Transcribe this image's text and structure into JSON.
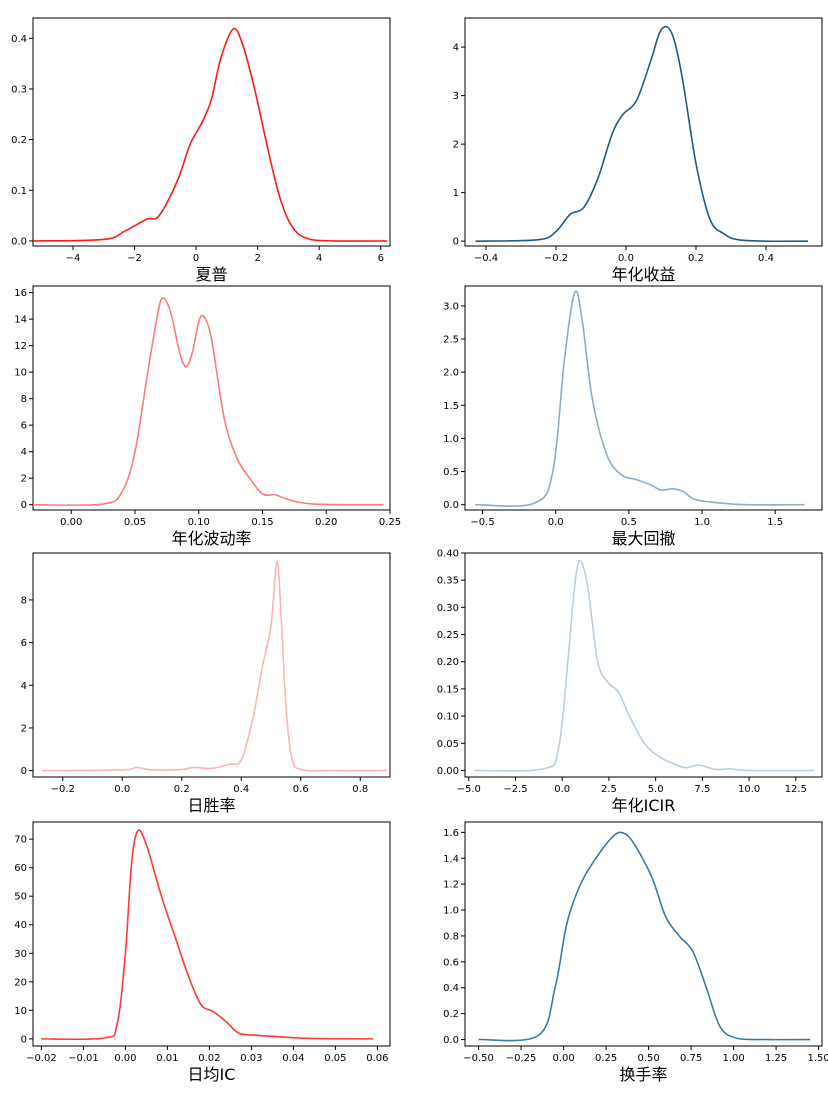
{
  "chart_data": [
    {
      "type": "line",
      "xlabel": "夏普",
      "color": "#ff1a1a",
      "xlim": [
        -5.3,
        6.3
      ],
      "ylim": [
        -0.01,
        0.44
      ],
      "xticks": [
        -4,
        -2,
        0,
        2,
        4,
        6
      ],
      "yticks": [
        0.0,
        0.1,
        0.2,
        0.3,
        0.4
      ],
      "points": [
        [
          -5.3,
          0.0
        ],
        [
          -3.0,
          0.003
        ],
        [
          -2.3,
          0.02
        ],
        [
          -1.6,
          0.043
        ],
        [
          -1.2,
          0.05
        ],
        [
          -0.6,
          0.12
        ],
        [
          -0.2,
          0.19
        ],
        [
          0.2,
          0.235
        ],
        [
          0.5,
          0.28
        ],
        [
          0.8,
          0.36
        ],
        [
          1.2,
          0.418
        ],
        [
          1.5,
          0.39
        ],
        [
          1.9,
          0.3
        ],
        [
          2.3,
          0.19
        ],
        [
          2.7,
          0.09
        ],
        [
          3.1,
          0.03
        ],
        [
          3.6,
          0.005
        ],
        [
          4.5,
          0.0
        ],
        [
          6.2,
          0.0
        ]
      ]
    },
    {
      "type": "line",
      "xlabel": "年化收益",
      "color": "#1f5b87",
      "xlim": [
        -0.46,
        0.56
      ],
      "ylim": [
        -0.1,
        4.6
      ],
      "xticks": [
        -0.4,
        -0.2,
        0.0,
        0.2,
        0.4
      ],
      "yticks": [
        0,
        1,
        2,
        3,
        4
      ],
      "points": [
        [
          -0.43,
          0.0
        ],
        [
          -0.25,
          0.03
        ],
        [
          -0.2,
          0.2
        ],
        [
          -0.16,
          0.55
        ],
        [
          -0.12,
          0.7
        ],
        [
          -0.08,
          1.3
        ],
        [
          -0.04,
          2.2
        ],
        [
          -0.01,
          2.6
        ],
        [
          0.03,
          2.9
        ],
        [
          0.07,
          3.7
        ],
        [
          0.1,
          4.35
        ],
        [
          0.13,
          4.3
        ],
        [
          0.16,
          3.4
        ],
        [
          0.2,
          1.6
        ],
        [
          0.24,
          0.45
        ],
        [
          0.28,
          0.15
        ],
        [
          0.32,
          0.03
        ],
        [
          0.4,
          0.0
        ],
        [
          0.52,
          0.0
        ]
      ]
    },
    {
      "type": "line",
      "xlabel": "年化波动率",
      "color": "#ff7b7b",
      "xlim": [
        -0.03,
        0.25
      ],
      "ylim": [
        -0.4,
        16.5
      ],
      "xticks": [
        0.0,
        0.05,
        0.1,
        0.15,
        0.2,
        0.25
      ],
      "yticks": [
        0,
        2,
        4,
        6,
        8,
        10,
        12,
        14,
        16
      ],
      "points": [
        [
          -0.03,
          0.0
        ],
        [
          0.025,
          0.05
        ],
        [
          0.04,
          1.0
        ],
        [
          0.05,
          4.0
        ],
        [
          0.06,
          10.0
        ],
        [
          0.068,
          14.5
        ],
        [
          0.072,
          15.6
        ],
        [
          0.078,
          14.5
        ],
        [
          0.085,
          11.5
        ],
        [
          0.09,
          10.4
        ],
        [
          0.095,
          11.5
        ],
        [
          0.1,
          13.8
        ],
        [
          0.104,
          14.2
        ],
        [
          0.11,
          12.5
        ],
        [
          0.12,
          6.5
        ],
        [
          0.13,
          3.5
        ],
        [
          0.14,
          2.0
        ],
        [
          0.15,
          0.8
        ],
        [
          0.16,
          0.75
        ],
        [
          0.17,
          0.4
        ],
        [
          0.19,
          0.05
        ],
        [
          0.245,
          0.0
        ]
      ]
    },
    {
      "type": "line",
      "xlabel": "最大回撤",
      "color": "#8aaec8",
      "xlim": [
        -0.62,
        1.82
      ],
      "ylim": [
        -0.08,
        3.3
      ],
      "xticks": [
        -0.5,
        0.0,
        0.5,
        1.0,
        1.5
      ],
      "yticks": [
        0.0,
        0.5,
        1.0,
        1.5,
        2.0,
        2.5,
        3.0
      ],
      "points": [
        [
          -0.55,
          0.0
        ],
        [
          -0.15,
          0.02
        ],
        [
          -0.02,
          0.5
        ],
        [
          0.06,
          2.2
        ],
        [
          0.13,
          3.2
        ],
        [
          0.18,
          2.8
        ],
        [
          0.25,
          1.6
        ],
        [
          0.35,
          0.75
        ],
        [
          0.45,
          0.45
        ],
        [
          0.55,
          0.38
        ],
        [
          0.65,
          0.3
        ],
        [
          0.72,
          0.22
        ],
        [
          0.8,
          0.24
        ],
        [
          0.87,
          0.2
        ],
        [
          0.95,
          0.08
        ],
        [
          1.1,
          0.03
        ],
        [
          1.3,
          0.0
        ],
        [
          1.7,
          0.0
        ]
      ]
    },
    {
      "type": "line",
      "xlabel": "日胜率",
      "color": "#ffb3b3",
      "xlim": [
        -0.3,
        0.9
      ],
      "ylim": [
        -0.3,
        10.2
      ],
      "xticks": [
        -0.2,
        0.0,
        0.2,
        0.4,
        0.6,
        0.8
      ],
      "yticks": [
        0,
        2,
        4,
        6,
        8
      ],
      "points": [
        [
          -0.27,
          0.0
        ],
        [
          0.0,
          0.03
        ],
        [
          0.05,
          0.15
        ],
        [
          0.1,
          0.03
        ],
        [
          0.2,
          0.05
        ],
        [
          0.24,
          0.15
        ],
        [
          0.3,
          0.1
        ],
        [
          0.36,
          0.3
        ],
        [
          0.4,
          0.5
        ],
        [
          0.44,
          2.5
        ],
        [
          0.47,
          4.8
        ],
        [
          0.5,
          6.8
        ],
        [
          0.52,
          9.8
        ],
        [
          0.535,
          7.0
        ],
        [
          0.55,
          3.0
        ],
        [
          0.57,
          0.6
        ],
        [
          0.6,
          0.05
        ],
        [
          0.7,
          0.0
        ],
        [
          0.89,
          0.0
        ]
      ]
    },
    {
      "type": "line",
      "xlabel": "年化ICIR",
      "color": "#b8cfe0",
      "xlim": [
        -5.2,
        13.9
      ],
      "ylim": [
        -0.012,
        0.4
      ],
      "xticks": [
        -5.0,
        -2.5,
        0.0,
        2.5,
        5.0,
        7.5,
        10.0,
        12.5
      ],
      "yticks": [
        0.0,
        0.05,
        0.1,
        0.15,
        0.2,
        0.25,
        0.3,
        0.35,
        0.4
      ],
      "points": [
        [
          -4.7,
          0.0
        ],
        [
          -1.0,
          0.003
        ],
        [
          -0.2,
          0.04
        ],
        [
          0.3,
          0.2
        ],
        [
          0.7,
          0.35
        ],
        [
          1.0,
          0.385
        ],
        [
          1.4,
          0.33
        ],
        [
          1.9,
          0.2
        ],
        [
          2.5,
          0.16
        ],
        [
          3.0,
          0.145
        ],
        [
          3.6,
          0.1
        ],
        [
          4.4,
          0.05
        ],
        [
          5.2,
          0.025
        ],
        [
          6.0,
          0.012
        ],
        [
          6.6,
          0.005
        ],
        [
          7.3,
          0.01
        ],
        [
          8.2,
          0.002
        ],
        [
          9.0,
          0.003
        ],
        [
          10.0,
          0.0
        ],
        [
          13.5,
          0.0
        ]
      ]
    },
    {
      "type": "line",
      "xlabel": "日均IC",
      "color": "#ff3a3a",
      "xlim": [
        -0.022,
        0.063
      ],
      "ylim": [
        -2.5,
        76
      ],
      "xticks": [
        -0.02,
        -0.01,
        0.0,
        0.01,
        0.02,
        0.03,
        0.04,
        0.05,
        0.06
      ],
      "yticks": [
        0,
        10,
        20,
        30,
        40,
        50,
        60,
        70
      ],
      "points": [
        [
          -0.02,
          0.0
        ],
        [
          -0.005,
          0.3
        ],
        [
          -0.002,
          5.0
        ],
        [
          0.0,
          30.0
        ],
        [
          0.0015,
          62.0
        ],
        [
          0.003,
          73.0
        ],
        [
          0.005,
          68.0
        ],
        [
          0.007,
          58.0
        ],
        [
          0.009,
          48.0
        ],
        [
          0.012,
          35.0
        ],
        [
          0.015,
          22.0
        ],
        [
          0.018,
          12.0
        ],
        [
          0.021,
          9.5
        ],
        [
          0.024,
          6.0
        ],
        [
          0.027,
          2.0
        ],
        [
          0.031,
          1.3
        ],
        [
          0.036,
          0.8
        ],
        [
          0.043,
          0.2
        ],
        [
          0.059,
          0.0
        ]
      ]
    },
    {
      "type": "line",
      "xlabel": "换手率",
      "color": "#3a7aa8",
      "xlim": [
        -0.58,
        1.52
      ],
      "ylim": [
        -0.05,
        1.68
      ],
      "xticks": [
        -0.5,
        -0.25,
        0.0,
        0.25,
        0.5,
        0.75,
        1.0,
        1.25,
        1.5
      ],
      "yticks": [
        0.0,
        0.2,
        0.4,
        0.6,
        0.8,
        1.0,
        1.2,
        1.4,
        1.6
      ],
      "points": [
        [
          -0.5,
          0.0
        ],
        [
          -0.15,
          0.03
        ],
        [
          -0.05,
          0.4
        ],
        [
          0.02,
          0.9
        ],
        [
          0.1,
          1.2
        ],
        [
          0.2,
          1.42
        ],
        [
          0.3,
          1.58
        ],
        [
          0.36,
          1.59
        ],
        [
          0.42,
          1.5
        ],
        [
          0.52,
          1.25
        ],
        [
          0.6,
          0.95
        ],
        [
          0.68,
          0.8
        ],
        [
          0.76,
          0.68
        ],
        [
          0.84,
          0.4
        ],
        [
          0.92,
          0.1
        ],
        [
          1.02,
          0.01
        ],
        [
          1.2,
          0.0
        ],
        [
          1.45,
          0.0
        ]
      ]
    }
  ]
}
